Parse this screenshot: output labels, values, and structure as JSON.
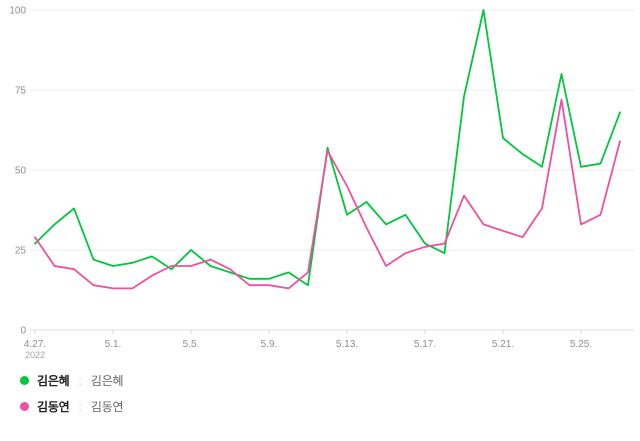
{
  "chart_data": {
    "type": "line",
    "title": "",
    "xlabel": "",
    "ylabel": "",
    "ylim": [
      0,
      100
    ],
    "y_ticks": [
      0,
      25,
      50,
      75,
      100
    ],
    "grid": true,
    "legend_position": "bottom-left",
    "categories": [
      "4.27.",
      "4.28.",
      "4.29.",
      "4.30.",
      "5.1.",
      "5.2.",
      "5.3.",
      "5.4.",
      "5.5.",
      "5.6.",
      "5.7.",
      "5.8.",
      "5.9.",
      "5.10.",
      "5.11.",
      "5.12.",
      "5.13.",
      "5.14.",
      "5.15.",
      "5.16.",
      "5.17.",
      "5.18.",
      "5.19.",
      "5.20.",
      "5.21.",
      "5.22.",
      "5.23.",
      "5.24.",
      "5.25.",
      "5.26.",
      "5.27."
    ],
    "x_ticks": [
      {
        "index": 0,
        "label": "4.27.",
        "sub": "2022"
      },
      {
        "index": 4,
        "label": "5.1."
      },
      {
        "index": 8,
        "label": "5.5."
      },
      {
        "index": 12,
        "label": "5.9."
      },
      {
        "index": 16,
        "label": "5.13."
      },
      {
        "index": 20,
        "label": "5.17."
      },
      {
        "index": 24,
        "label": "5.21."
      },
      {
        "index": 28,
        "label": "5.25."
      }
    ],
    "series": [
      {
        "name": "김은혜",
        "color": "#00c73c",
        "values": [
          27,
          33,
          38,
          22,
          20,
          21,
          23,
          19,
          25,
          20,
          18,
          16,
          16,
          18,
          14,
          57,
          36,
          40,
          33,
          36,
          27,
          24,
          73,
          100,
          60,
          55,
          51,
          80,
          51,
          52,
          68
        ]
      },
      {
        "name": "김동연",
        "color": "#f0509e",
        "values": [
          29,
          20,
          19,
          14,
          13,
          13,
          17,
          20,
          20,
          22,
          19,
          14,
          14,
          13,
          18,
          56,
          45,
          32,
          20,
          24,
          26,
          27,
          42,
          33,
          31,
          29,
          38,
          72,
          33,
          36,
          59
        ]
      }
    ]
  },
  "legend": {
    "items": [
      {
        "name": "김은혜",
        "sep": ":",
        "value": "김은혜"
      },
      {
        "name": "김동연",
        "sep": ":",
        "value": "김동연"
      }
    ]
  }
}
